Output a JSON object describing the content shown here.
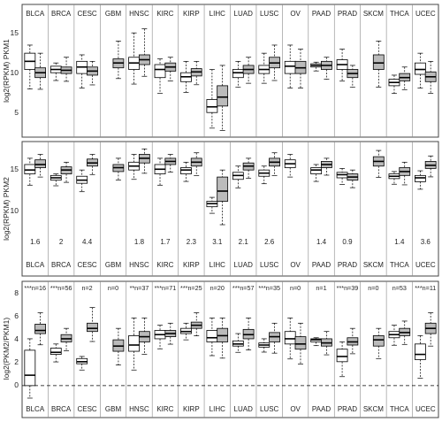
{
  "colors": {
    "tumor_fill": "#ffffff",
    "normal_fill": "#bbbbbb",
    "stroke": "#000000",
    "frame": "#444444",
    "divider": "#888888"
  },
  "chart_data": [
    {
      "type": "boxplot",
      "ylabel": "log2(RPKM) PKM1",
      "ylim": [
        2,
        15.5
      ],
      "yticks": [
        "5",
        "10",
        "15"
      ],
      "cancers": [
        "BLCA",
        "BRCA",
        "CESC",
        "GBM",
        "HNSC",
        "KIRC",
        "KIRP",
        "LIHC",
        "LUAD",
        "LUSC",
        "OV",
        "PAAD",
        "PRAD",
        "SKCM",
        "THCA",
        "UCEC"
      ],
      "series": [
        {
          "fill": "white",
          "boxes": [
            [
              10,
              11,
              12,
              13
            ],
            [
              9.6,
              10,
              10.4,
              10.8
            ],
            [
              9.5,
              10.3,
              11,
              11.8
            ],
            null,
            [
              10,
              10.8,
              11.5,
              14.5
            ],
            [
              9,
              10,
              10.6,
              11.3
            ],
            [
              8.5,
              9.1,
              9.6,
              11
            ],
            [
              4.7,
              5.4,
              6.3,
              10
            ],
            [
              9,
              9.6,
              10,
              11
            ],
            [
              9.5,
              10,
              10.5,
              12
            ],
            [
              9.5,
              10.4,
              11,
              13
            ],
            [
              10.3,
              10.5,
              10.7,
              10.9
            ],
            [
              10,
              10.6,
              11.2,
              12.5
            ],
            null,
            [
              8,
              8.4,
              8.8,
              9.3
            ],
            [
              9.4,
              10,
              10.8,
              12
            ]
          ]
        },
        {
          "fill": "grey",
          "boxes": [
            [
              9,
              9.6,
              10.2,
              12
            ],
            [
              9.5,
              9.9,
              10.3,
              11.5
            ],
            [
              9.3,
              9.8,
              10.3,
              11
            ],
            [
              10.2,
              10.8,
              11.3,
              13.5
            ],
            [
              10.6,
              11.2,
              11.8,
              15
            ],
            [
              9.8,
              10.3,
              10.8,
              11.5
            ],
            [
              9.2,
              9.7,
              10.1,
              11
            ],
            [
              5.5,
              6.6,
              8,
              10.5
            ],
            [
              9.5,
              10,
              10.5,
              11.5
            ],
            [
              10.2,
              10.8,
              11.5,
              13
            ],
            [
              9.5,
              10.2,
              11,
              12.5
            ],
            [
              10,
              10.5,
              11,
              11.5
            ],
            [
              9,
              9.5,
              10,
              10.5
            ],
            [
              10,
              10.8,
              11.8,
              13.5
            ],
            [
              8.6,
              9,
              9.5,
              10.3
            ],
            [
              8.5,
              9.1,
              9.7,
              11
            ]
          ]
        }
      ]
    },
    {
      "type": "boxplot",
      "ylabel": "log2(RPKM) PKM2",
      "ylim": [
        7.5,
        17.8
      ],
      "yticks": [
        "10",
        "15"
      ],
      "cancers": [
        "BLCA",
        "BRCA",
        "CESC",
        "GBM",
        "HNSC",
        "KIRC",
        "KIRP",
        "LIHC",
        "LUAD",
        "LUSC",
        "OV",
        "PAAD",
        "PRAD",
        "SKCM",
        "THCA",
        "UCEC"
      ],
      "annotations": [
        "1.6",
        "2",
        "4.4",
        "",
        "1.8",
        "1.7",
        "2.3",
        "3.1",
        "2.1",
        "2.6",
        "",
        "1.4",
        "0.9",
        "",
        "1.4",
        "3.6"
      ],
      "series": [
        {
          "fill": "white",
          "boxes": [
            [
              14,
              14.5,
              15.2,
              16
            ],
            [
              13.2,
              13.5,
              13.8,
              14
            ],
            [
              12.8,
              13.2,
              13.7,
              14.5
            ],
            null,
            [
              14.5,
              15,
              15.5,
              16.5
            ],
            [
              14,
              14.6,
              15.2,
              16
            ],
            [
              14,
              14.5,
              14.8,
              15.5
            ],
            [
              9.8,
              10.2,
              10.5,
              11
            ],
            [
              13.3,
              13.8,
              14.2,
              15
            ],
            [
              13.7,
              14.1,
              14.5,
              15
            ],
            [
              14.8,
              15.3,
              15.8,
              16.5
            ],
            [
              14,
              14.5,
              14.8,
              15.2
            ],
            [
              13.5,
              13.9,
              14.2,
              14.7
            ],
            null,
            [
              13.4,
              13.7,
              14,
              14.3
            ],
            [
              13,
              13.5,
              13.8,
              14.4
            ]
          ]
        },
        {
          "fill": "grey",
          "boxes": [
            [
              14.8,
              15.2,
              15.8,
              16.5
            ],
            [
              14,
              14.5,
              14.9,
              15.5
            ],
            [
              15,
              15.4,
              15.9,
              16.5
            ],
            [
              14.3,
              14.8,
              15.2,
              16
            ],
            [
              15.4,
              16,
              16.5,
              17.2
            ],
            [
              15.2,
              15.6,
              16,
              16.5
            ],
            [
              15,
              15.5,
              16,
              16.7
            ],
            [
              10.5,
              11.8,
              13.6,
              14.5
            ],
            [
              14.5,
              15,
              15.4,
              16
            ],
            [
              15,
              15.5,
              16,
              16.7
            ],
            null,
            [
              14.8,
              15.2,
              15.6,
              16
            ],
            [
              13.2,
              13.6,
              14,
              14.5
            ],
            [
              15,
              15.6,
              16.2,
              17
            ],
            [
              13.8,
              14.3,
              14.8,
              15.5
            ],
            [
              14.7,
              15.1,
              15.6,
              16.3
            ]
          ]
        }
      ]
    },
    {
      "type": "boxplot",
      "ylabel": "log2(PKM2/PKM1)",
      "ylim": [
        -1.2,
        9
      ],
      "yticks": [
        "0",
        "2",
        "4",
        "6",
        "8"
      ],
      "reference_line": 0,
      "cancers": [
        "BLCA",
        "BRCA",
        "CESC",
        "GBM",
        "HNSC",
        "KIRC",
        "KIRP",
        "LIHC",
        "LUAD",
        "LUSC",
        "OV",
        "PAAD",
        "PRAD",
        "SKCM",
        "THCA",
        "UCEC"
      ],
      "labels": [
        "***n=16",
        "***n=56",
        "n=2",
        "n=0",
        "**n=37",
        "***n=71",
        "***n=25",
        "n=20",
        "***n=57",
        "***n=35",
        "n=0",
        "n=1",
        "***n=39",
        "n=0",
        "n=53",
        "***n=11"
      ],
      "series": [
        {
          "fill": "white",
          "boxes": [
            [
              0,
              1,
              3.4,
              4.5
            ],
            [
              3,
              3.2,
              3.6,
              4
            ],
            [
              2.1,
              2.3,
              2.6,
              2.8
            ],
            null,
            [
              3.3,
              3.9,
              4.8,
              6.5
            ],
            [
              4.5,
              4.9,
              5.3,
              5.8
            ],
            [
              5,
              5.2,
              5.5,
              6
            ],
            [
              4.2,
              4.6,
              5.3,
              6.5
            ],
            [
              3.8,
              4,
              4.3,
              5
            ],
            [
              3.7,
              3.9,
              4.1,
              4.5
            ],
            [
              4,
              4.5,
              5.2,
              6.5
            ],
            [
              4.2,
              4.4,
              4.5,
              4.6
            ],
            [
              2.3,
              2.8,
              3.5,
              4.2
            ],
            null,
            [
              4.6,
              4.9,
              5.2,
              5.8
            ],
            [
              2.5,
              3,
              4,
              4.8
            ]
          ]
        },
        {
          "fill": "grey",
          "boxes": [
            [
              5,
              5.3,
              5.9,
              7
            ],
            [
              4.2,
              4.5,
              4.9,
              5.5
            ],
            [
              5.2,
              5.5,
              6,
              7.5
            ],
            [
              3.3,
              3.8,
              4.4,
              5.5
            ],
            [
              4.2,
              4.7,
              5.2,
              6.5
            ],
            [
              4.7,
              5,
              5.3,
              6
            ],
            [
              5.5,
              5.8,
              6.1,
              7
            ],
            [
              4.2,
              4.8,
              5.5,
              6.5
            ],
            [
              4.5,
              4.9,
              5.4,
              6.5
            ],
            [
              4.2,
              4.7,
              5.1,
              6
            ],
            [
              3.5,
              4,
              4.7,
              6
            ],
            [
              3.8,
              4.1,
              4.5,
              5.2
            ],
            [
              3.9,
              4.2,
              4.6,
              5.5
            ],
            [
              3.8,
              4.4,
              4.8,
              5.5
            ],
            [
              4.8,
              5.1,
              5.5,
              6.2
            ],
            [
              5,
              5.5,
              6,
              7
            ]
          ]
        }
      ]
    }
  ]
}
